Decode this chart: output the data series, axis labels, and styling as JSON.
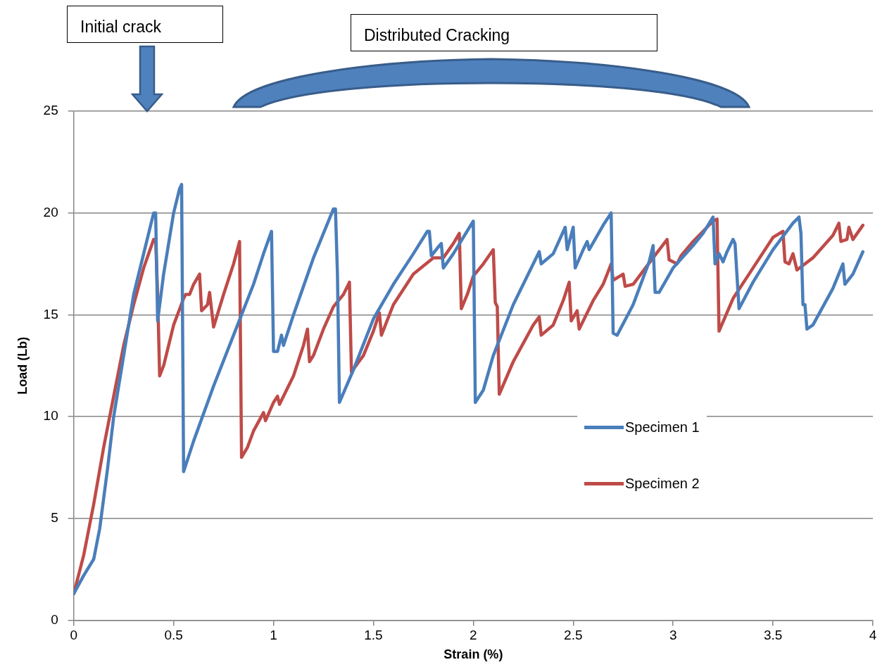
{
  "chart_data": {
    "type": "line",
    "xlabel": "Strain (%)",
    "ylabel": "Load (Lb)",
    "xlim": [
      0,
      4
    ],
    "xticks": [
      0,
      0.5,
      1,
      1.5,
      2,
      2.5,
      3,
      3.5,
      4
    ],
    "ylim": [
      0,
      25
    ],
    "yticks": [
      0,
      5,
      10,
      15,
      20,
      25
    ],
    "grid": "y",
    "legend": "right",
    "marker": "none",
    "line_style": "solid",
    "annotations": [
      "Initial crack",
      "Distributed Cracking"
    ],
    "series": [
      {
        "name": "Specimen 1",
        "color": "#4a7ebb",
        "x": [
          0,
          0.05,
          0.1,
          0.13,
          0.17,
          0.2,
          0.25,
          0.3,
          0.35,
          0.4,
          0.41,
          0.42,
          0.45,
          0.5,
          0.53,
          0.54,
          0.55,
          0.6,
          0.7,
          0.8,
          0.9,
          0.95,
          0.99,
          1.0,
          1.02,
          1.04,
          1.05,
          1.1,
          1.2,
          1.25,
          1.3,
          1.31,
          1.32,
          1.33,
          1.4,
          1.5,
          1.6,
          1.7,
          1.77,
          1.78,
          1.79,
          1.83,
          1.84,
          1.85,
          1.9,
          2.0,
          2.01,
          2.05,
          2.1,
          2.2,
          2.3,
          2.33,
          2.34,
          2.4,
          2.46,
          2.47,
          2.5,
          2.51,
          2.55,
          2.57,
          2.58,
          2.65,
          2.69,
          2.7,
          2.72,
          2.8,
          2.88,
          2.9,
          2.91,
          2.93,
          3.0,
          3.1,
          3.15,
          3.2,
          3.21,
          3.23,
          3.25,
          3.27,
          3.3,
          3.31,
          3.33,
          3.4,
          3.5,
          3.6,
          3.63,
          3.64,
          3.65,
          3.66,
          3.67,
          3.7,
          3.8,
          3.85,
          3.86,
          3.9,
          3.95
        ],
        "values": [
          1.3,
          2.2,
          3,
          4.5,
          7.5,
          10,
          13,
          16,
          18,
          20,
          20,
          14.7,
          17,
          20,
          21.2,
          21.4,
          7.3,
          8.8,
          11.5,
          14,
          16.5,
          18,
          19.1,
          13.2,
          13.2,
          14,
          13.5,
          15,
          17.8,
          19,
          20.2,
          20.2,
          17,
          10.7,
          12.3,
          14.8,
          16.5,
          18,
          19.1,
          19.1,
          17.9,
          18.4,
          18.5,
          17.3,
          18,
          19.6,
          10.7,
          11.3,
          13,
          15.5,
          17.5,
          18.1,
          17.5,
          18,
          19.3,
          18.2,
          19.3,
          17.3,
          18.2,
          18.6,
          18.2,
          19.4,
          20,
          14.1,
          14,
          15.5,
          17.6,
          18.4,
          16.1,
          16.1,
          17.3,
          18.4,
          19,
          19.8,
          17.5,
          18,
          17.6,
          18.1,
          18.7,
          18.5,
          15.3,
          16.6,
          18.2,
          19.5,
          19.8,
          19,
          15.5,
          15.5,
          14.3,
          14.5,
          16.3,
          17.5,
          16.5,
          17,
          18.1
        ]
      },
      {
        "name": "Specimen 2",
        "color": "#be4b48",
        "x": [
          0,
          0.05,
          0.1,
          0.15,
          0.2,
          0.25,
          0.3,
          0.35,
          0.4,
          0.41,
          0.42,
          0.43,
          0.45,
          0.5,
          0.55,
          0.56,
          0.58,
          0.6,
          0.63,
          0.64,
          0.67,
          0.68,
          0.7,
          0.75,
          0.8,
          0.83,
          0.84,
          0.87,
          0.9,
          0.95,
          0.96,
          1.0,
          1.02,
          1.03,
          1.1,
          1.15,
          1.17,
          1.18,
          1.2,
          1.25,
          1.3,
          1.35,
          1.38,
          1.39,
          1.45,
          1.5,
          1.53,
          1.54,
          1.6,
          1.7,
          1.8,
          1.85,
          1.9,
          1.93,
          1.94,
          1.97,
          2.0,
          2.05,
          2.1,
          2.11,
          2.12,
          2.13,
          2.2,
          2.3,
          2.33,
          2.34,
          2.4,
          2.45,
          2.48,
          2.49,
          2.52,
          2.53,
          2.6,
          2.65,
          2.69,
          2.7,
          2.75,
          2.76,
          2.8,
          2.9,
          2.97,
          2.98,
          3.02,
          3.04,
          3.1,
          3.2,
          3.22,
          3.23,
          3.3,
          3.4,
          3.5,
          3.55,
          3.56,
          3.58,
          3.6,
          3.62,
          3.7,
          3.8,
          3.83,
          3.84,
          3.87,
          3.88,
          3.9,
          3.95
        ],
        "values": [
          1.3,
          3.2,
          5.7,
          8.5,
          11,
          13.5,
          15.5,
          17.3,
          18.7,
          18.7,
          16,
          12,
          12.5,
          14.5,
          15.8,
          16,
          16,
          16.5,
          17,
          15.2,
          15.5,
          16.1,
          14.4,
          16,
          17.5,
          18.6,
          8,
          8.5,
          9.3,
          10.2,
          9.8,
          10.7,
          11,
          10.6,
          12,
          13.5,
          14.3,
          12.7,
          13,
          14.3,
          15.4,
          16,
          16.6,
          12.2,
          13,
          14.2,
          15.1,
          14,
          15.5,
          17,
          17.8,
          17.8,
          18.5,
          19,
          15.3,
          16,
          16.9,
          17.5,
          18.2,
          15.6,
          15.4,
          11.1,
          12.7,
          14.5,
          14.9,
          14,
          14.5,
          15.7,
          16.6,
          14.7,
          15.2,
          14.3,
          15.7,
          16.5,
          17.5,
          16.7,
          17,
          16.4,
          16.5,
          17.8,
          18.7,
          17.7,
          17.5,
          17.9,
          18.6,
          19.6,
          19.7,
          14.2,
          15.8,
          17.3,
          18.8,
          19.1,
          17.6,
          17.5,
          18,
          17.2,
          17.8,
          18.9,
          19.5,
          18.6,
          18.7,
          19.3,
          18.7,
          19.4
        ]
      }
    ]
  }
}
